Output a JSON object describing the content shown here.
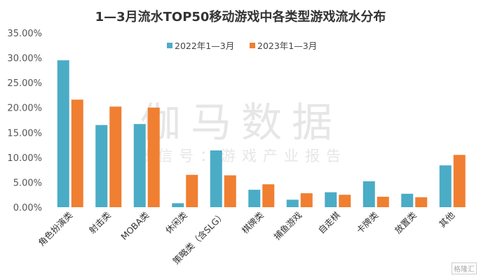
{
  "chart_data": {
    "type": "bar",
    "title": "1—3月流水TOP50移动游戏中各类型游戏流水分布",
    "categories": [
      "角色扮演类",
      "射击类",
      "MOBA类",
      "休闲类",
      "策略类（含SLG）",
      "棋牌类",
      "捕鱼游戏",
      "自走棋",
      "卡牌类",
      "放置类",
      "其他"
    ],
    "series": [
      {
        "name": "2022年1—3月",
        "color": "#4bacc6",
        "values": [
          29.5,
          16.5,
          16.7,
          0.8,
          11.4,
          3.5,
          1.5,
          3.0,
          5.2,
          2.7,
          8.4
        ]
      },
      {
        "name": "2023年1—3月",
        "color": "#f07f31",
        "values": [
          21.6,
          20.2,
          20.0,
          6.5,
          6.4,
          4.6,
          2.8,
          2.5,
          2.1,
          2.0,
          10.5
        ]
      }
    ],
    "ylim": [
      0,
      35
    ],
    "yticks": [
      "0.00%",
      "5.00%",
      "10.00%",
      "15.00%",
      "20.00%",
      "25.00%",
      "30.00%",
      "35.00%"
    ],
    "grid": false,
    "legend": "top-right"
  },
  "watermark": {
    "main": "伽马数据",
    "sub": "微信号：游戏产业报告"
  },
  "logo": "格隆汇"
}
